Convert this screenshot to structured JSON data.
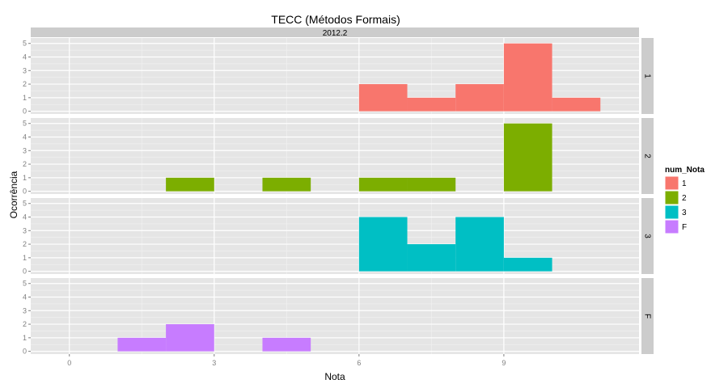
{
  "chart_data": {
    "type": "histogram",
    "title": "TECC (Métodos Formais)",
    "xlabel": "Nota",
    "ylabel": "Ocorrência",
    "column_strip": "2012.2",
    "x_range": [
      -0.8,
      11.8
    ],
    "x_ticks": [
      0,
      3,
      6,
      9
    ],
    "y_range": [
      -0.2,
      5.4
    ],
    "y_ticks": [
      0,
      1,
      2,
      3,
      4,
      5
    ],
    "bin_width": 1,
    "grid": true,
    "legend": {
      "title": "num_Nota",
      "placement": "right",
      "entries": [
        {
          "label": "1",
          "color": "#F8766D"
        },
        {
          "label": "2",
          "color": "#7CAE00"
        },
        {
          "label": "3",
          "color": "#00BFC4"
        },
        {
          "label": "F",
          "color": "#C77CFF"
        }
      ]
    },
    "panels": [
      {
        "label": "1",
        "color": "#F8766D",
        "bins": [
          {
            "x0": 6,
            "x1": 7,
            "count": 2
          },
          {
            "x0": 7,
            "x1": 8,
            "count": 1
          },
          {
            "x0": 8,
            "x1": 9,
            "count": 2
          },
          {
            "x0": 9,
            "x1": 10,
            "count": 5
          },
          {
            "x0": 10,
            "x1": 11,
            "count": 1
          }
        ]
      },
      {
        "label": "2",
        "color": "#7CAE00",
        "bins": [
          {
            "x0": 2,
            "x1": 3,
            "count": 1
          },
          {
            "x0": 4,
            "x1": 5,
            "count": 1
          },
          {
            "x0": 6,
            "x1": 7,
            "count": 1
          },
          {
            "x0": 7,
            "x1": 8,
            "count": 1
          },
          {
            "x0": 9,
            "x1": 10,
            "count": 5
          }
        ]
      },
      {
        "label": "3",
        "color": "#00BFC4",
        "bins": [
          {
            "x0": 6,
            "x1": 7,
            "count": 4
          },
          {
            "x0": 7,
            "x1": 8,
            "count": 2
          },
          {
            "x0": 8,
            "x1": 9,
            "count": 4
          },
          {
            "x0": 9,
            "x1": 10,
            "count": 1
          }
        ]
      },
      {
        "label": "F",
        "color": "#C77CFF",
        "bins": [
          {
            "x0": 1,
            "x1": 2,
            "count": 1
          },
          {
            "x0": 2,
            "x1": 3,
            "count": 2
          },
          {
            "x0": 4,
            "x1": 5,
            "count": 1
          }
        ]
      }
    ]
  },
  "colors": {
    "panel_bg": "#E5E5E5",
    "strip_bg": "#CCCCCC",
    "grid_major": "#FFFFFF",
    "grid_minor": "#F2F2F2",
    "axis_text": "#7F7F7F"
  }
}
